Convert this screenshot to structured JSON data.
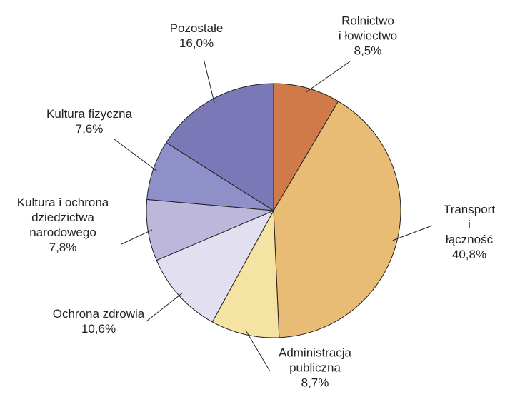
{
  "chart_data": {
    "type": "pie",
    "categories": [
      "Rolnictwo\ni łowiectwo",
      "Transport\ni łączność",
      "Administracja\npubliczna",
      "Ochrona zdrowia",
      "Kultura i ochrona\ndziedzictwa\nnarodowego",
      "Kultura fizyczna",
      "Pozostałe"
    ],
    "values": [
      8.5,
      40.8,
      8.7,
      10.6,
      7.8,
      7.6,
      16.0
    ],
    "value_labels": [
      "8,5%",
      "40,8%",
      "8,7%",
      "10,6%",
      "7,8%",
      "7,6%",
      "16,0%"
    ],
    "colors": [
      "#d07a4a",
      "#e8bc75",
      "#f4e3a2",
      "#e1dff0",
      "#bdb7dc",
      "#8f8fc9",
      "#7b78b8"
    ]
  }
}
